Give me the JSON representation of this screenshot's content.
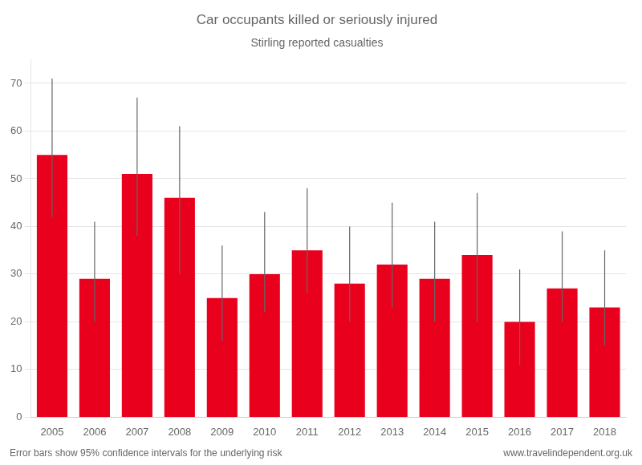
{
  "chart_data": {
    "type": "bar",
    "title": "Car occupants killed or seriously injured",
    "subtitle": "Stirling reported casualties",
    "categories": [
      "2005",
      "2006",
      "2007",
      "2008",
      "2009",
      "2010",
      "2011",
      "2012",
      "2013",
      "2014",
      "2015",
      "2016",
      "2017",
      "2018"
    ],
    "values": [
      55,
      29,
      51,
      46,
      25,
      30,
      35,
      28,
      32,
      29,
      34,
      20,
      27,
      23
    ],
    "error_low": [
      13,
      9,
      13,
      16,
      9,
      8,
      9,
      8,
      9,
      9,
      14,
      9,
      7,
      8
    ],
    "error_high": [
      16,
      12,
      16,
      15,
      11,
      13,
      13,
      12,
      13,
      12,
      13,
      11,
      12,
      12
    ],
    "color": "#e8001c",
    "ylim": [
      0,
      75
    ],
    "yticks": [
      0,
      10,
      20,
      30,
      40,
      50,
      60,
      70
    ],
    "grid": true,
    "annotations": [
      "Error bars show 95% confidence intervals for the underlying risk",
      "www.travelindependent.org.uk"
    ]
  }
}
